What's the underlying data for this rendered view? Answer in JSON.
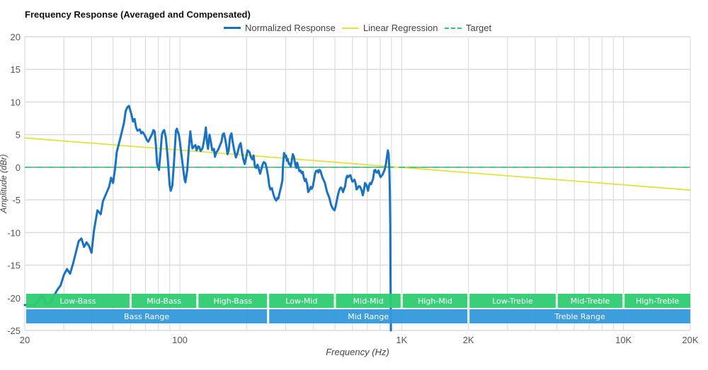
{
  "chart_data": {
    "type": "line",
    "title": "Frequency Response (Averaged and Compensated)",
    "xlabel": "Frequency (Hz)",
    "ylabel": "Amplitude (dBr)",
    "xscale": "log",
    "xlim": [
      20,
      20000
    ],
    "ylim": [
      -25,
      20
    ],
    "grid": true,
    "legend_position": "top-center",
    "x_ticks": [
      {
        "value": 20,
        "label": "20"
      },
      {
        "value": 100,
        "label": "100"
      },
      {
        "value": 1000,
        "label": "1K"
      },
      {
        "value": 2000,
        "label": "2K"
      },
      {
        "value": 10000,
        "label": "10K"
      },
      {
        "value": 20000,
        "label": "20K"
      }
    ],
    "x_minor_grid": [
      30,
      40,
      50,
      60,
      70,
      80,
      90,
      200,
      300,
      400,
      500,
      600,
      700,
      800,
      900,
      3000,
      4000,
      5000,
      6000,
      7000,
      8000,
      9000
    ],
    "y_ticks": [
      20,
      15,
      10,
      5,
      0,
      -5,
      -10,
      -15,
      -20,
      -25
    ],
    "series": [
      {
        "name": "Normalized Response",
        "color": "#1a73c2",
        "style": "solid",
        "points": [
          [
            20,
            -21.1
          ],
          [
            22,
            -21.2
          ],
          [
            23,
            -20.5
          ],
          [
            24,
            -19.6
          ],
          [
            25,
            -21.0
          ],
          [
            26,
            -20.8
          ],
          [
            28,
            -18.8
          ],
          [
            29,
            -18.1
          ],
          [
            30,
            -16.5
          ],
          [
            31,
            -15.6
          ],
          [
            32,
            -16.3
          ],
          [
            33,
            -14.8
          ],
          [
            35,
            -11.3
          ],
          [
            36,
            -10.9
          ],
          [
            37,
            -12.2
          ],
          [
            38,
            -11.5
          ],
          [
            39,
            -12.1
          ],
          [
            40,
            -13.1
          ],
          [
            41,
            -9.7
          ],
          [
            42.5,
            -6.6
          ],
          [
            44,
            -7.2
          ],
          [
            45,
            -5.2
          ],
          [
            47,
            -3.7
          ],
          [
            48,
            -3.0
          ],
          [
            49,
            -1.6
          ],
          [
            50,
            -2.4
          ],
          [
            51,
            -0.3
          ],
          [
            52,
            2.4
          ],
          [
            53.5,
            4.0
          ],
          [
            54.5,
            5.1
          ],
          [
            56,
            6.8
          ],
          [
            57,
            8.6
          ],
          [
            58,
            9.2
          ],
          [
            59,
            9.4
          ],
          [
            60.5,
            8.1
          ],
          [
            61.5,
            7.0
          ],
          [
            62.5,
            7.4
          ],
          [
            63.5,
            6.1
          ],
          [
            64.5,
            5.6
          ],
          [
            66,
            5.8
          ],
          [
            67,
            5.2
          ],
          [
            68,
            5.4
          ],
          [
            69.5,
            4.9
          ],
          [
            71,
            4.2
          ],
          [
            72,
            3.9
          ],
          [
            73,
            4.3
          ],
          [
            75,
            5.1
          ],
          [
            76,
            5.7
          ],
          [
            77,
            5.5
          ],
          [
            78,
            3.4
          ],
          [
            79,
            0.5
          ],
          [
            80.5,
            -0.4
          ],
          [
            81.5,
            1.6
          ],
          [
            83,
            5.0
          ],
          [
            84,
            5.5
          ],
          [
            85,
            5.7
          ],
          [
            86.5,
            4.5
          ],
          [
            88,
            1.8
          ],
          [
            90,
            -2.8
          ],
          [
            91,
            -3.6
          ],
          [
            92.5,
            -2.8
          ],
          [
            94,
            0.5
          ],
          [
            96,
            5.6
          ],
          [
            97,
            5.9
          ],
          [
            98,
            5.4
          ],
          [
            99,
            5.0
          ],
          [
            100,
            4.0
          ],
          [
            102.5,
            0.9
          ],
          [
            105,
            -1.8
          ],
          [
            106,
            -2.3
          ],
          [
            108,
            -0.4
          ],
          [
            110,
            3.3
          ],
          [
            111.5,
            5.5
          ],
          [
            112.5,
            4.4
          ],
          [
            114,
            2.9
          ],
          [
            116,
            3.2
          ],
          [
            117.5,
            3.4
          ],
          [
            119,
            2.6
          ],
          [
            121,
            3.2
          ],
          [
            122.5,
            3.1
          ],
          [
            124,
            2.5
          ],
          [
            126,
            2.8
          ],
          [
            127,
            3.1
          ],
          [
            129,
            4.4
          ],
          [
            131,
            6.1
          ],
          [
            132.5,
            3.9
          ],
          [
            134,
            2.8
          ],
          [
            136,
            5.0
          ],
          [
            138,
            3.9
          ],
          [
            140,
            2.6
          ],
          [
            142.5,
            2.8
          ],
          [
            144,
            1.6
          ],
          [
            146,
            2.3
          ],
          [
            148.5,
            2.6
          ],
          [
            151,
            3.2
          ],
          [
            154,
            3.9
          ],
          [
            156,
            5.0
          ],
          [
            158,
            5.2
          ],
          [
            160,
            4.4
          ],
          [
            162,
            3.3
          ],
          [
            164,
            2.0
          ],
          [
            166,
            2.6
          ],
          [
            168.5,
            4.7
          ],
          [
            171,
            5.2
          ],
          [
            173,
            3.9
          ],
          [
            176,
            2.6
          ],
          [
            179,
            1.5
          ],
          [
            182,
            2.2
          ],
          [
            185,
            3.2
          ],
          [
            188,
            3.7
          ],
          [
            190,
            2.6
          ],
          [
            193,
            1.3
          ],
          [
            196,
            0.5
          ],
          [
            199,
            1.5
          ],
          [
            202,
            2.6
          ],
          [
            206,
            2.3
          ],
          [
            209,
            1.6
          ],
          [
            212,
            1.2
          ],
          [
            215,
            1.8
          ],
          [
            218,
            0.1
          ],
          [
            221,
            -0.1
          ],
          [
            224,
            0.4
          ],
          [
            227,
            -0.3
          ],
          [
            230,
            -1.0
          ],
          [
            233,
            -0.3
          ],
          [
            236,
            0.4
          ],
          [
            239,
            0.8
          ],
          [
            243,
            0.6
          ],
          [
            246,
            -0.1
          ],
          [
            250,
            -1.4
          ],
          [
            253,
            -2.8
          ],
          [
            256,
            -3.4
          ],
          [
            260,
            -3.2
          ],
          [
            264,
            -4.1
          ],
          [
            268,
            -4.8
          ],
          [
            272,
            -5.1
          ],
          [
            275,
            -4.7
          ],
          [
            278,
            -4.8
          ],
          [
            283,
            -3.6
          ],
          [
            286,
            -3.0
          ],
          [
            290,
            -2.0
          ],
          [
            292,
            0.4
          ],
          [
            295,
            2.2
          ],
          [
            298,
            1.6
          ],
          [
            301,
            1.8
          ],
          [
            304,
            1.0
          ],
          [
            306,
            1.3
          ],
          [
            310,
            0.5
          ],
          [
            313,
            0.5
          ],
          [
            316,
            0.1
          ],
          [
            319,
            0.9
          ],
          [
            323,
            2.0
          ],
          [
            327,
            1.6
          ],
          [
            331,
            0.5
          ],
          [
            335,
            -0.1
          ],
          [
            338,
            0.7
          ],
          [
            341,
            0.2
          ],
          [
            346,
            -0.6
          ],
          [
            350,
            -0.5
          ],
          [
            354,
            -0.9
          ],
          [
            358,
            -0.7
          ],
          [
            362,
            -1.6
          ],
          [
            366,
            -2.1
          ],
          [
            370,
            -1.8
          ],
          [
            375,
            -2.6
          ],
          [
            379,
            -3.8
          ],
          [
            384,
            -3.5
          ],
          [
            389,
            -3.0
          ],
          [
            393,
            -3.3
          ],
          [
            398,
            -2.9
          ],
          [
            403,
            -1.8
          ],
          [
            407,
            -1.0
          ],
          [
            411,
            -0.6
          ],
          [
            416,
            -0.5
          ],
          [
            421,
            -0.8
          ],
          [
            425,
            -0.4
          ],
          [
            430,
            -0.5
          ],
          [
            436,
            -1.2
          ],
          [
            440,
            -1.6
          ],
          [
            445,
            -2.0
          ],
          [
            450,
            -2.3
          ],
          [
            455,
            -3.0
          ],
          [
            460,
            -3.7
          ],
          [
            465,
            -4.1
          ],
          [
            471,
            -4.6
          ],
          [
            476,
            -5.2
          ],
          [
            481,
            -5.8
          ],
          [
            487,
            -6.2
          ],
          [
            492,
            -6.4
          ],
          [
            498,
            -6.6
          ],
          [
            503,
            -6.1
          ],
          [
            509,
            -5.3
          ],
          [
            514,
            -4.5
          ],
          [
            520,
            -3.8
          ],
          [
            526,
            -3.3
          ],
          [
            532,
            -3.1
          ],
          [
            538,
            -3.3
          ],
          [
            544,
            -3.8
          ],
          [
            550,
            -3.3
          ],
          [
            556,
            -2.9
          ],
          [
            562,
            -1.8
          ],
          [
            568,
            -1.3
          ],
          [
            574,
            -1.5
          ],
          [
            581,
            -1.3
          ],
          [
            587,
            -1.2
          ],
          [
            593,
            -1.7
          ],
          [
            600,
            -2.2
          ],
          [
            606,
            -2.1
          ],
          [
            613,
            -1.9
          ],
          [
            620,
            -2.5
          ],
          [
            626,
            -3.4
          ],
          [
            633,
            -3.2
          ],
          [
            640,
            -2.9
          ],
          [
            647,
            -2.9
          ],
          [
            654,
            -3.2
          ],
          [
            661,
            -3.6
          ],
          [
            668,
            -4.3
          ],
          [
            675,
            -3.6
          ],
          [
            683,
            -2.4
          ],
          [
            690,
            -2.6
          ],
          [
            698,
            -3.0
          ],
          [
            705,
            -3.6
          ],
          [
            713,
            -2.8
          ],
          [
            720,
            -2.4
          ],
          [
            728,
            -2.6
          ],
          [
            736,
            -2.2
          ],
          [
            744,
            -1.7
          ],
          [
            752,
            -0.5
          ],
          [
            760,
            -0.4
          ],
          [
            769,
            -0.8
          ],
          [
            777,
            -0.8
          ],
          [
            786,
            -0.5
          ],
          [
            794,
            -1.1
          ],
          [
            803,
            -1.5
          ],
          [
            812,
            -1.3
          ],
          [
            821,
            -1.1
          ],
          [
            830,
            -0.7
          ],
          [
            839,
            -0.3
          ],
          [
            849,
            0.5
          ],
          [
            858,
            1.6
          ],
          [
            866,
            2.6
          ],
          [
            874,
            2.0
          ],
          [
            880,
            -0.3
          ],
          [
            884,
            -3.5
          ],
          [
            888,
            -8.9
          ],
          [
            891,
            -17.6
          ],
          [
            894,
            -25
          ]
        ]
      },
      {
        "name": "Linear Regression",
        "color": "#e2e23c",
        "style": "solid",
        "points": [
          [
            20,
            4.5
          ],
          [
            20000,
            -3.5
          ]
        ]
      },
      {
        "name": "Target",
        "color": "#2ecc71",
        "style": "dashed",
        "points": [
          [
            20,
            0
          ],
          [
            20000,
            0
          ]
        ]
      }
    ],
    "bands": [
      {
        "label": "Low-Bass",
        "from": 20,
        "to": 60,
        "row": 1,
        "color": "#2ecc71"
      },
      {
        "label": "Mid-Bass",
        "from": 60,
        "to": 120,
        "row": 1,
        "color": "#2ecc71"
      },
      {
        "label": "High-Bass",
        "from": 120,
        "to": 250,
        "row": 1,
        "color": "#2ecc71"
      },
      {
        "label": "Low-Mid",
        "from": 250,
        "to": 500,
        "row": 1,
        "color": "#2ecc71"
      },
      {
        "label": "Mid-Mid",
        "from": 500,
        "to": 1000,
        "row": 1,
        "color": "#2ecc71"
      },
      {
        "label": "High-Mid",
        "from": 1000,
        "to": 2000,
        "row": 1,
        "color": "#2ecc71"
      },
      {
        "label": "Low-Treble",
        "from": 2000,
        "to": 5000,
        "row": 1,
        "color": "#2ecc71"
      },
      {
        "label": "Mid-Treble",
        "from": 5000,
        "to": 10000,
        "row": 1,
        "color": "#2ecc71"
      },
      {
        "label": "High-Treble",
        "from": 10000,
        "to": 20000,
        "row": 1,
        "color": "#2ecc71"
      },
      {
        "label": "Bass Range",
        "from": 20,
        "to": 250,
        "row": 2,
        "color": "#3498db"
      },
      {
        "label": "Mid Range",
        "from": 250,
        "to": 2000,
        "row": 2,
        "color": "#3498db"
      },
      {
        "label": "Treble Range",
        "from": 2000,
        "to": 20000,
        "row": 2,
        "color": "#3498db"
      }
    ]
  },
  "legend": [
    {
      "label": "Normalized Response",
      "color": "#1a73c2",
      "style": "solid"
    },
    {
      "label": "Linear Regression",
      "color": "#e2e23c",
      "style": "solid"
    },
    {
      "label": "Target",
      "color": "#2ecc71",
      "style": "dashed"
    }
  ]
}
